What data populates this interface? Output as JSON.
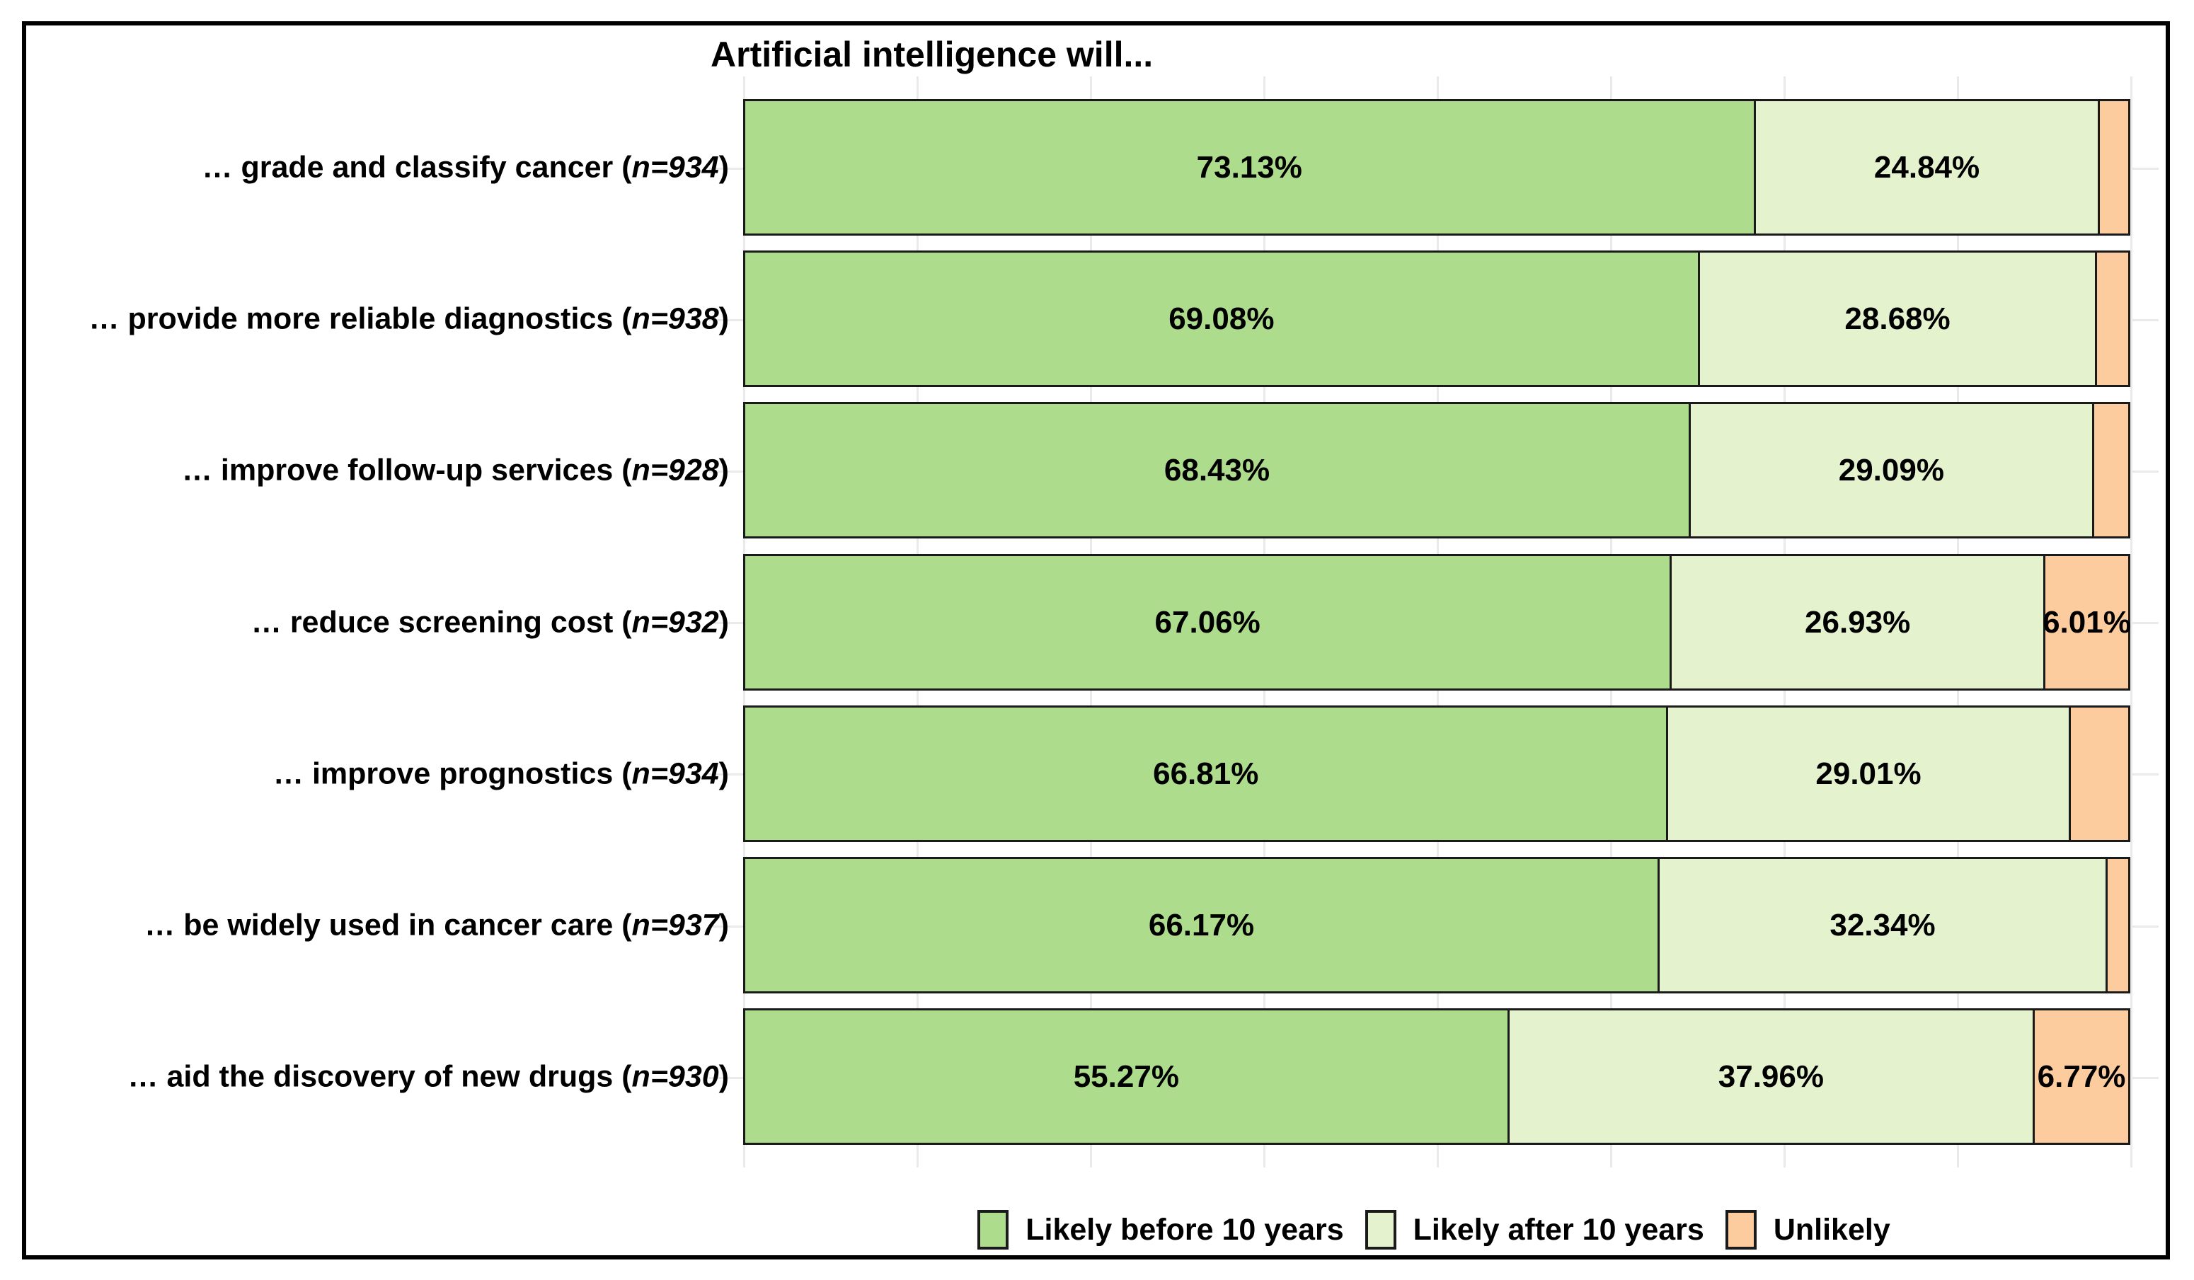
{
  "title": "Artificial intelligence will...",
  "legend": {
    "items": [
      {
        "label": "Likely before 10 years",
        "color": "#addc8c"
      },
      {
        "label": "Likely after 10 years",
        "color": "#e4f2ce"
      },
      {
        "label": "Unlikely",
        "color": "#fccb9e"
      }
    ]
  },
  "colors": {
    "likely_before": "#addc8c",
    "likely_after": "#e4f2ce",
    "unlikely": "#fccb9e",
    "segment_border": "#1a1a1a",
    "gridline": "#eaeaea",
    "figure_border": "#000000",
    "background": "#ffffff"
  },
  "chart_data": {
    "type": "bar",
    "orientation": "horizontal",
    "stacked": true,
    "unit": "percent",
    "xlim": [
      0,
      100
    ],
    "grid": "faint vertical lines every 12.5% and horizontal lines at category centers",
    "legend_position": "bottom-center",
    "title": "Artificial intelligence will...",
    "categories": [
      "… grade and classify cancer (n=934)",
      "… provide more reliable diagnostics (n=938)",
      "… improve follow-up services (n=928)",
      "… reduce screening cost (n=932)",
      "… improve prognostics (n=934)",
      "… be widely used in cancer care (n=937)",
      "… aid the discovery of new drugs (n=930)"
    ],
    "series": [
      {
        "name": "Likely before 10 years",
        "color": "#addc8c",
        "values": [
          73.13,
          69.08,
          68.43,
          67.06,
          66.81,
          66.17,
          55.27
        ]
      },
      {
        "name": "Likely after 10 years",
        "color": "#e4f2ce",
        "values": [
          24.84,
          28.68,
          29.09,
          26.93,
          29.01,
          32.34,
          37.96
        ]
      },
      {
        "name": "Unlikely",
        "color": "#fccb9e",
        "values": [
          2.03,
          2.24,
          2.48,
          6.01,
          4.18,
          1.49,
          6.77
        ]
      }
    ]
  },
  "rows": [
    {
      "pre": "… grade and classify cancer (",
      "n": "n=934",
      "post": ")",
      "labels": [
        "73.13%",
        "24.84%",
        ""
      ]
    },
    {
      "pre": "… provide more reliable diagnostics (",
      "n": "n=938",
      "post": ")",
      "labels": [
        "69.08%",
        "28.68%",
        ""
      ]
    },
    {
      "pre": "… improve follow-up services (",
      "n": "n=928",
      "post": ")",
      "labels": [
        "68.43%",
        "29.09%",
        ""
      ]
    },
    {
      "pre": "… reduce screening cost (",
      "n": "n=932",
      "post": ")",
      "labels": [
        "67.06%",
        "26.93%",
        "6.01%"
      ]
    },
    {
      "pre": "… improve prognostics (",
      "n": "n=934",
      "post": ")",
      "labels": [
        "66.81%",
        "29.01%",
        ""
      ]
    },
    {
      "pre": "… be widely used in cancer care (",
      "n": "n=937",
      "post": ")",
      "labels": [
        "66.17%",
        "32.34%",
        ""
      ]
    },
    {
      "pre": "… aid the discovery of new drugs (",
      "n": "n=930",
      "post": ")",
      "labels": [
        "55.27%",
        "37.96%",
        "6.77%"
      ]
    }
  ]
}
